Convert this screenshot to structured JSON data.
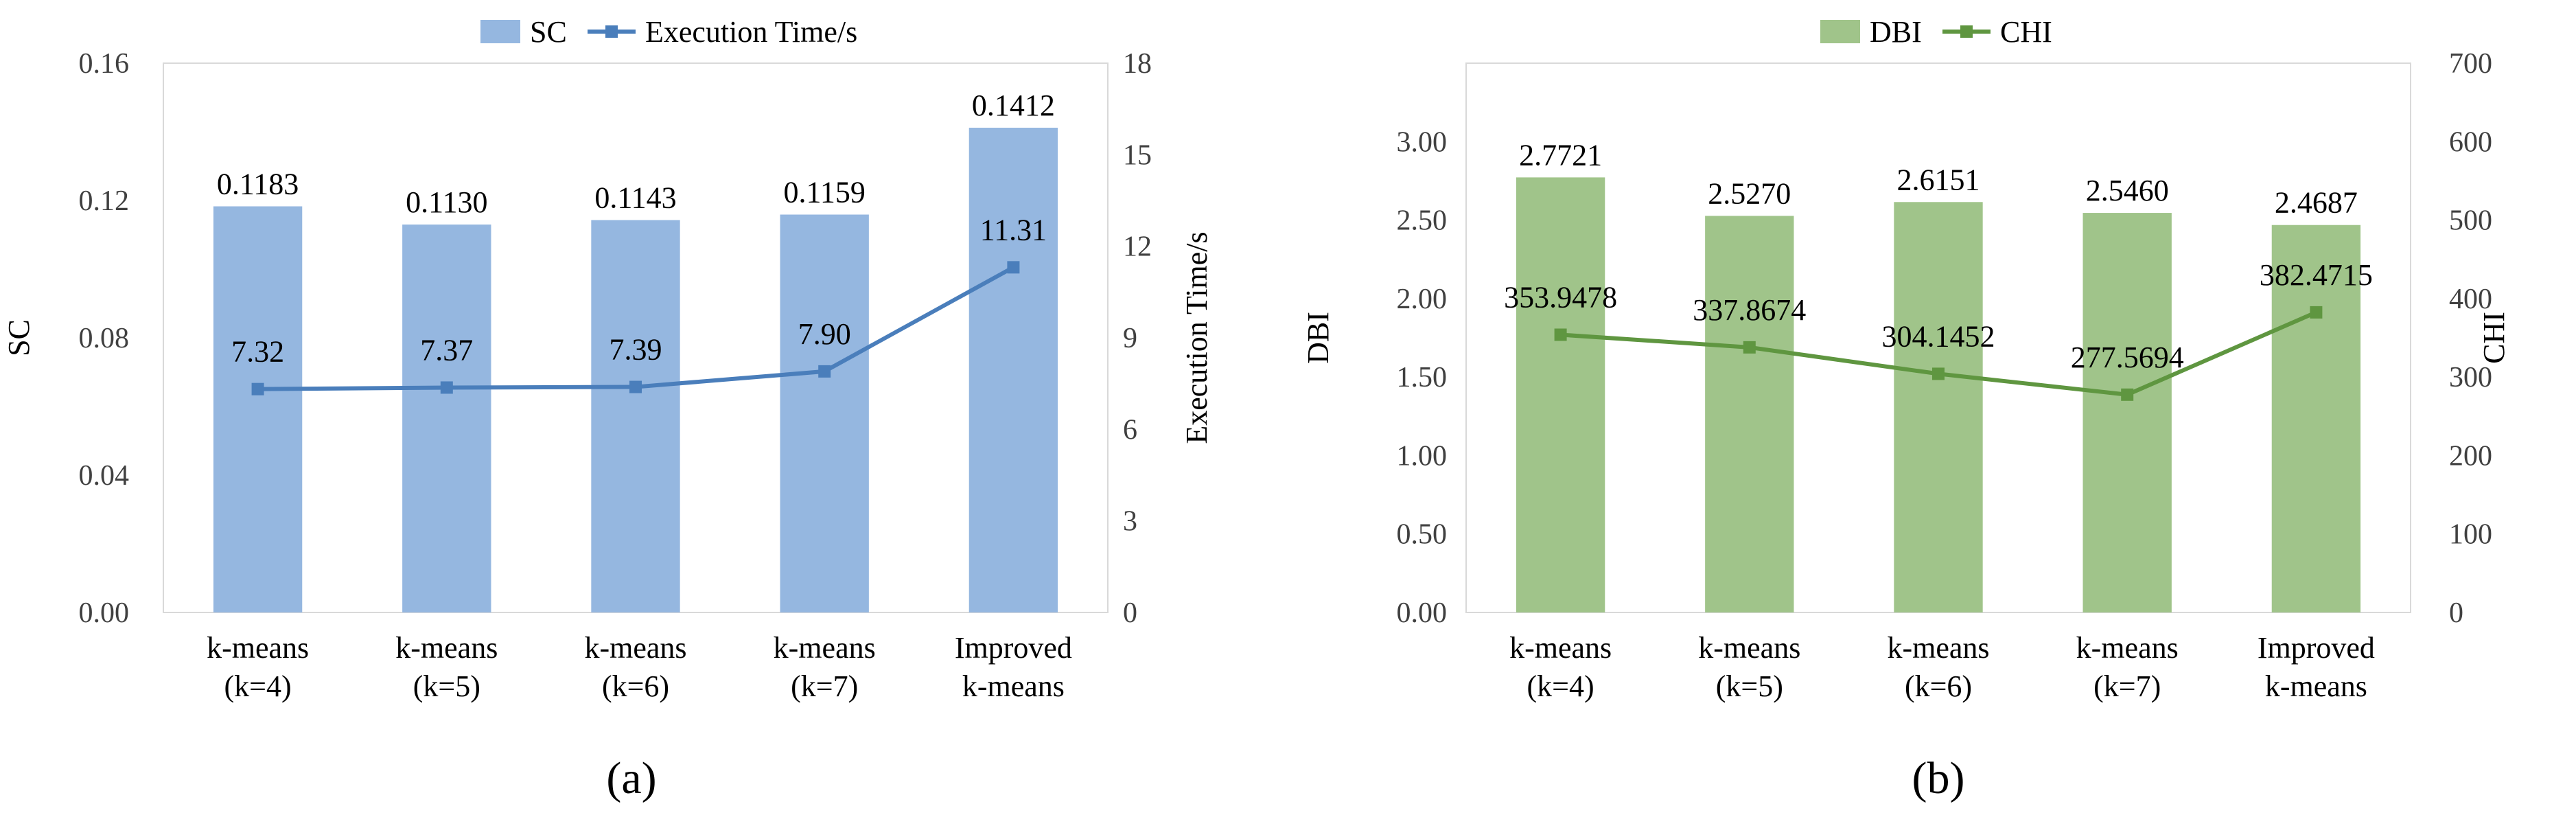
{
  "chart_data": [
    {
      "panel_label": "(a)",
      "type": "bar",
      "categories": [
        "k-means\n(k=4)",
        "k-means\n(k=5)",
        "k-means\n(k=6)",
        "k-means\n(k=7)",
        "Improved\nk-means"
      ],
      "series": [
        {
          "name": "SC",
          "kind": "bar",
          "axis": "left",
          "values": [
            0.1183,
            0.113,
            0.1143,
            0.1159,
            0.1412
          ],
          "labels": [
            "0.1183",
            "0.1130",
            "0.1143",
            "0.1159",
            "0.1412"
          ]
        },
        {
          "name": "Execution Time/s",
          "kind": "line",
          "axis": "right",
          "values": [
            7.32,
            7.37,
            7.39,
            7.9,
            11.31
          ],
          "labels": [
            "7.32",
            "7.37",
            "7.39",
            "7.90",
            "11.31"
          ]
        }
      ],
      "ylabel": "SC",
      "y2label": "Execution Time/s",
      "ylim": [
        0,
        0.16
      ],
      "y2lim": [
        0,
        18
      ],
      "yticks": [
        "0.00",
        "0.04",
        "0.08",
        "0.12",
        "0.16"
      ],
      "y2ticks": [
        "0",
        "3",
        "6",
        "9",
        "12",
        "15",
        "18"
      ],
      "colors": {
        "bar": "#95b7e0",
        "line": "#4a7ebb"
      },
      "legend": "top-center"
    },
    {
      "panel_label": "(b)",
      "type": "bar",
      "categories": [
        "k-means\n(k=4)",
        "k-means\n(k=5)",
        "k-means\n(k=6)",
        "k-means\n(k=7)",
        "Improved\nk-means"
      ],
      "series": [
        {
          "name": "DBI",
          "kind": "bar",
          "axis": "left",
          "values": [
            2.7721,
            2.527,
            2.6151,
            2.546,
            2.4687
          ],
          "labels": [
            "2.7721",
            "2.5270",
            "2.6151",
            "2.5460",
            "2.4687"
          ]
        },
        {
          "name": "CHI",
          "kind": "line",
          "axis": "right",
          "values": [
            353.9478,
            337.8674,
            304.1452,
            277.5694,
            382.4715
          ],
          "labels": [
            "353.9478",
            "337.8674",
            "304.1452",
            "277.5694",
            "382.4715"
          ]
        }
      ],
      "ylabel": "DBI",
      "y2label": "CHI",
      "ylim": [
        0,
        3.5
      ],
      "y2lim": [
        0,
        700
      ],
      "yticks": [
        "0.00",
        "0.50",
        "1.00",
        "1.50",
        "2.00",
        "2.50",
        "3.00"
      ],
      "y2ticks": [
        "0",
        "100",
        "200",
        "300",
        "400",
        "500",
        "600",
        "700"
      ],
      "colors": {
        "bar": "#a0c48a",
        "line": "#5f9640"
      },
      "legend": "top-center"
    }
  ]
}
